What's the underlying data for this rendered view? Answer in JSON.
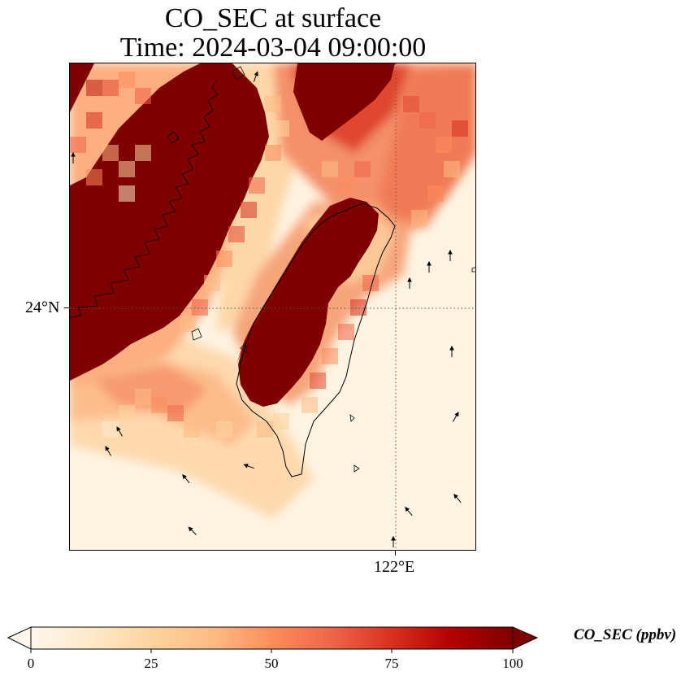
{
  "title": {
    "line1": "CO_SEC at surface",
    "line2": "Time: 2024-03-04 09:00:00"
  },
  "axes": {
    "lat_tick_label": "24°N",
    "lon_tick_label": "122°E"
  },
  "colorbar": {
    "label": "CO_SEC (ppbv)",
    "ticks": [
      "0",
      "25",
      "50",
      "75",
      "100"
    ],
    "min": 0,
    "max": 100,
    "extend": "both",
    "colormap": "OrRd",
    "colors": [
      "#fff7ec",
      "#fee8c8",
      "#fdd49e",
      "#fdbb84",
      "#fc8d59",
      "#ef6548",
      "#d7301f",
      "#b30000",
      "#7f0000"
    ]
  },
  "map": {
    "field": "CO_SEC",
    "units": "ppbv",
    "high_value_regions": "mainland coast and western Taiwan saturated above 100 ppbv; north-east plume over open sea",
    "gridlines": "dotted at 24°N and 122°E",
    "wind_vectors": true
  }
}
